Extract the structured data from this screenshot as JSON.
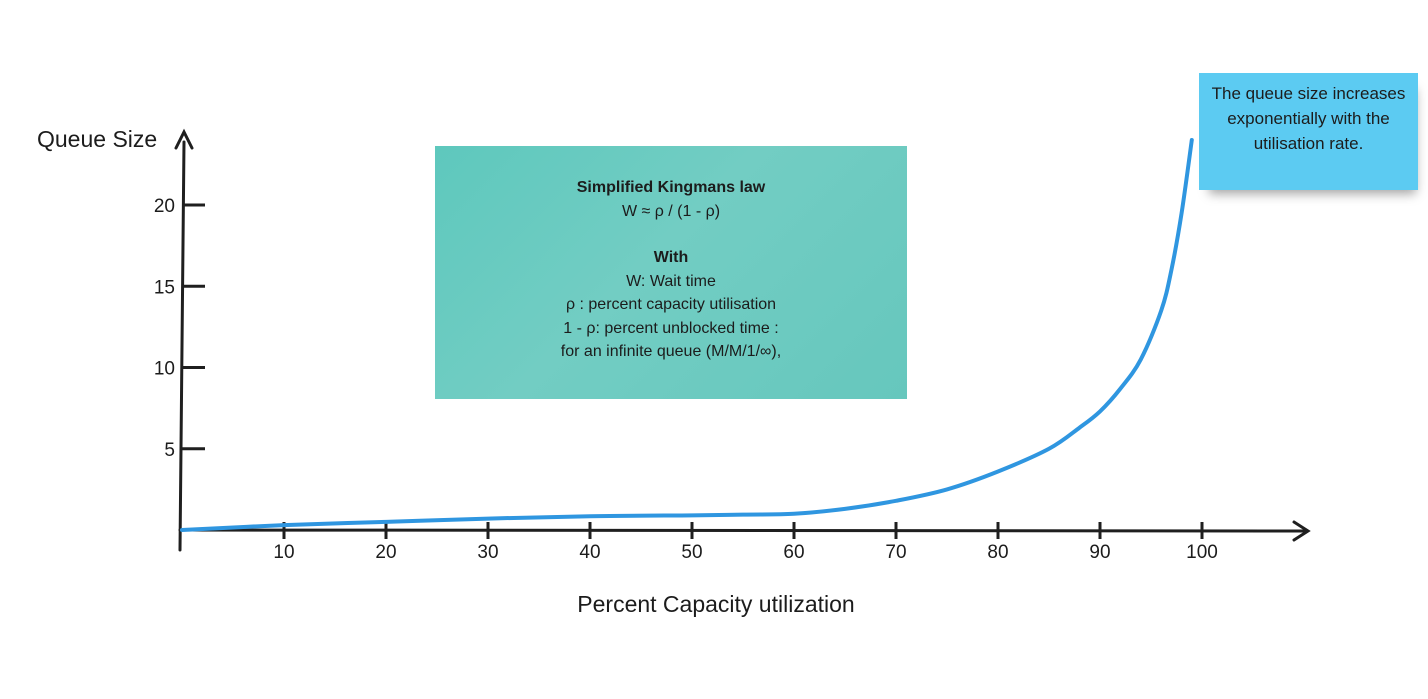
{
  "chart_data": {
    "type": "line",
    "xlabel": "Percent Capacity utilization",
    "ylabel": "Queue Size",
    "x_ticks": [
      "10",
      "20",
      "30",
      "40",
      "50",
      "60",
      "70",
      "80",
      "90",
      "100"
    ],
    "y_ticks": [
      "5",
      "10",
      "15",
      "20"
    ],
    "series": [
      {
        "color": "#2f96e0",
        "x": [
          0,
          10,
          20,
          30,
          40,
          50,
          55,
          60,
          65,
          70,
          75,
          80,
          85,
          88,
          90,
          92,
          94,
          96,
          97,
          98,
          99
        ],
        "y": [
          0.0,
          0.3,
          0.5,
          0.7,
          0.85,
          0.9,
          0.95,
          1.0,
          1.3,
          1.8,
          2.5,
          3.6,
          5.0,
          6.3,
          7.3,
          8.7,
          10.5,
          13.5,
          16.0,
          19.5,
          24.0
        ]
      }
    ]
  },
  "notes": {
    "kingman": {
      "title": "Simplified Kingmans law",
      "formula": "W ≈ ρ / (1 - ρ)",
      "with_heading": "With",
      "line1": "W: Wait time",
      "line2": "ρ : percent capacity utilisation",
      "line3": "1 - ρ: percent unblocked time :",
      "line4": "for an infinite queue (M/M/1/∞),"
    },
    "callout": {
      "text": "The queue  size increases exponentially with the utilisation rate."
    }
  },
  "colors": {
    "line": "#2f96e0",
    "green_note": "#66c7bd",
    "blue_note": "#5ccbf2",
    "axis": "#1f1f1f"
  }
}
